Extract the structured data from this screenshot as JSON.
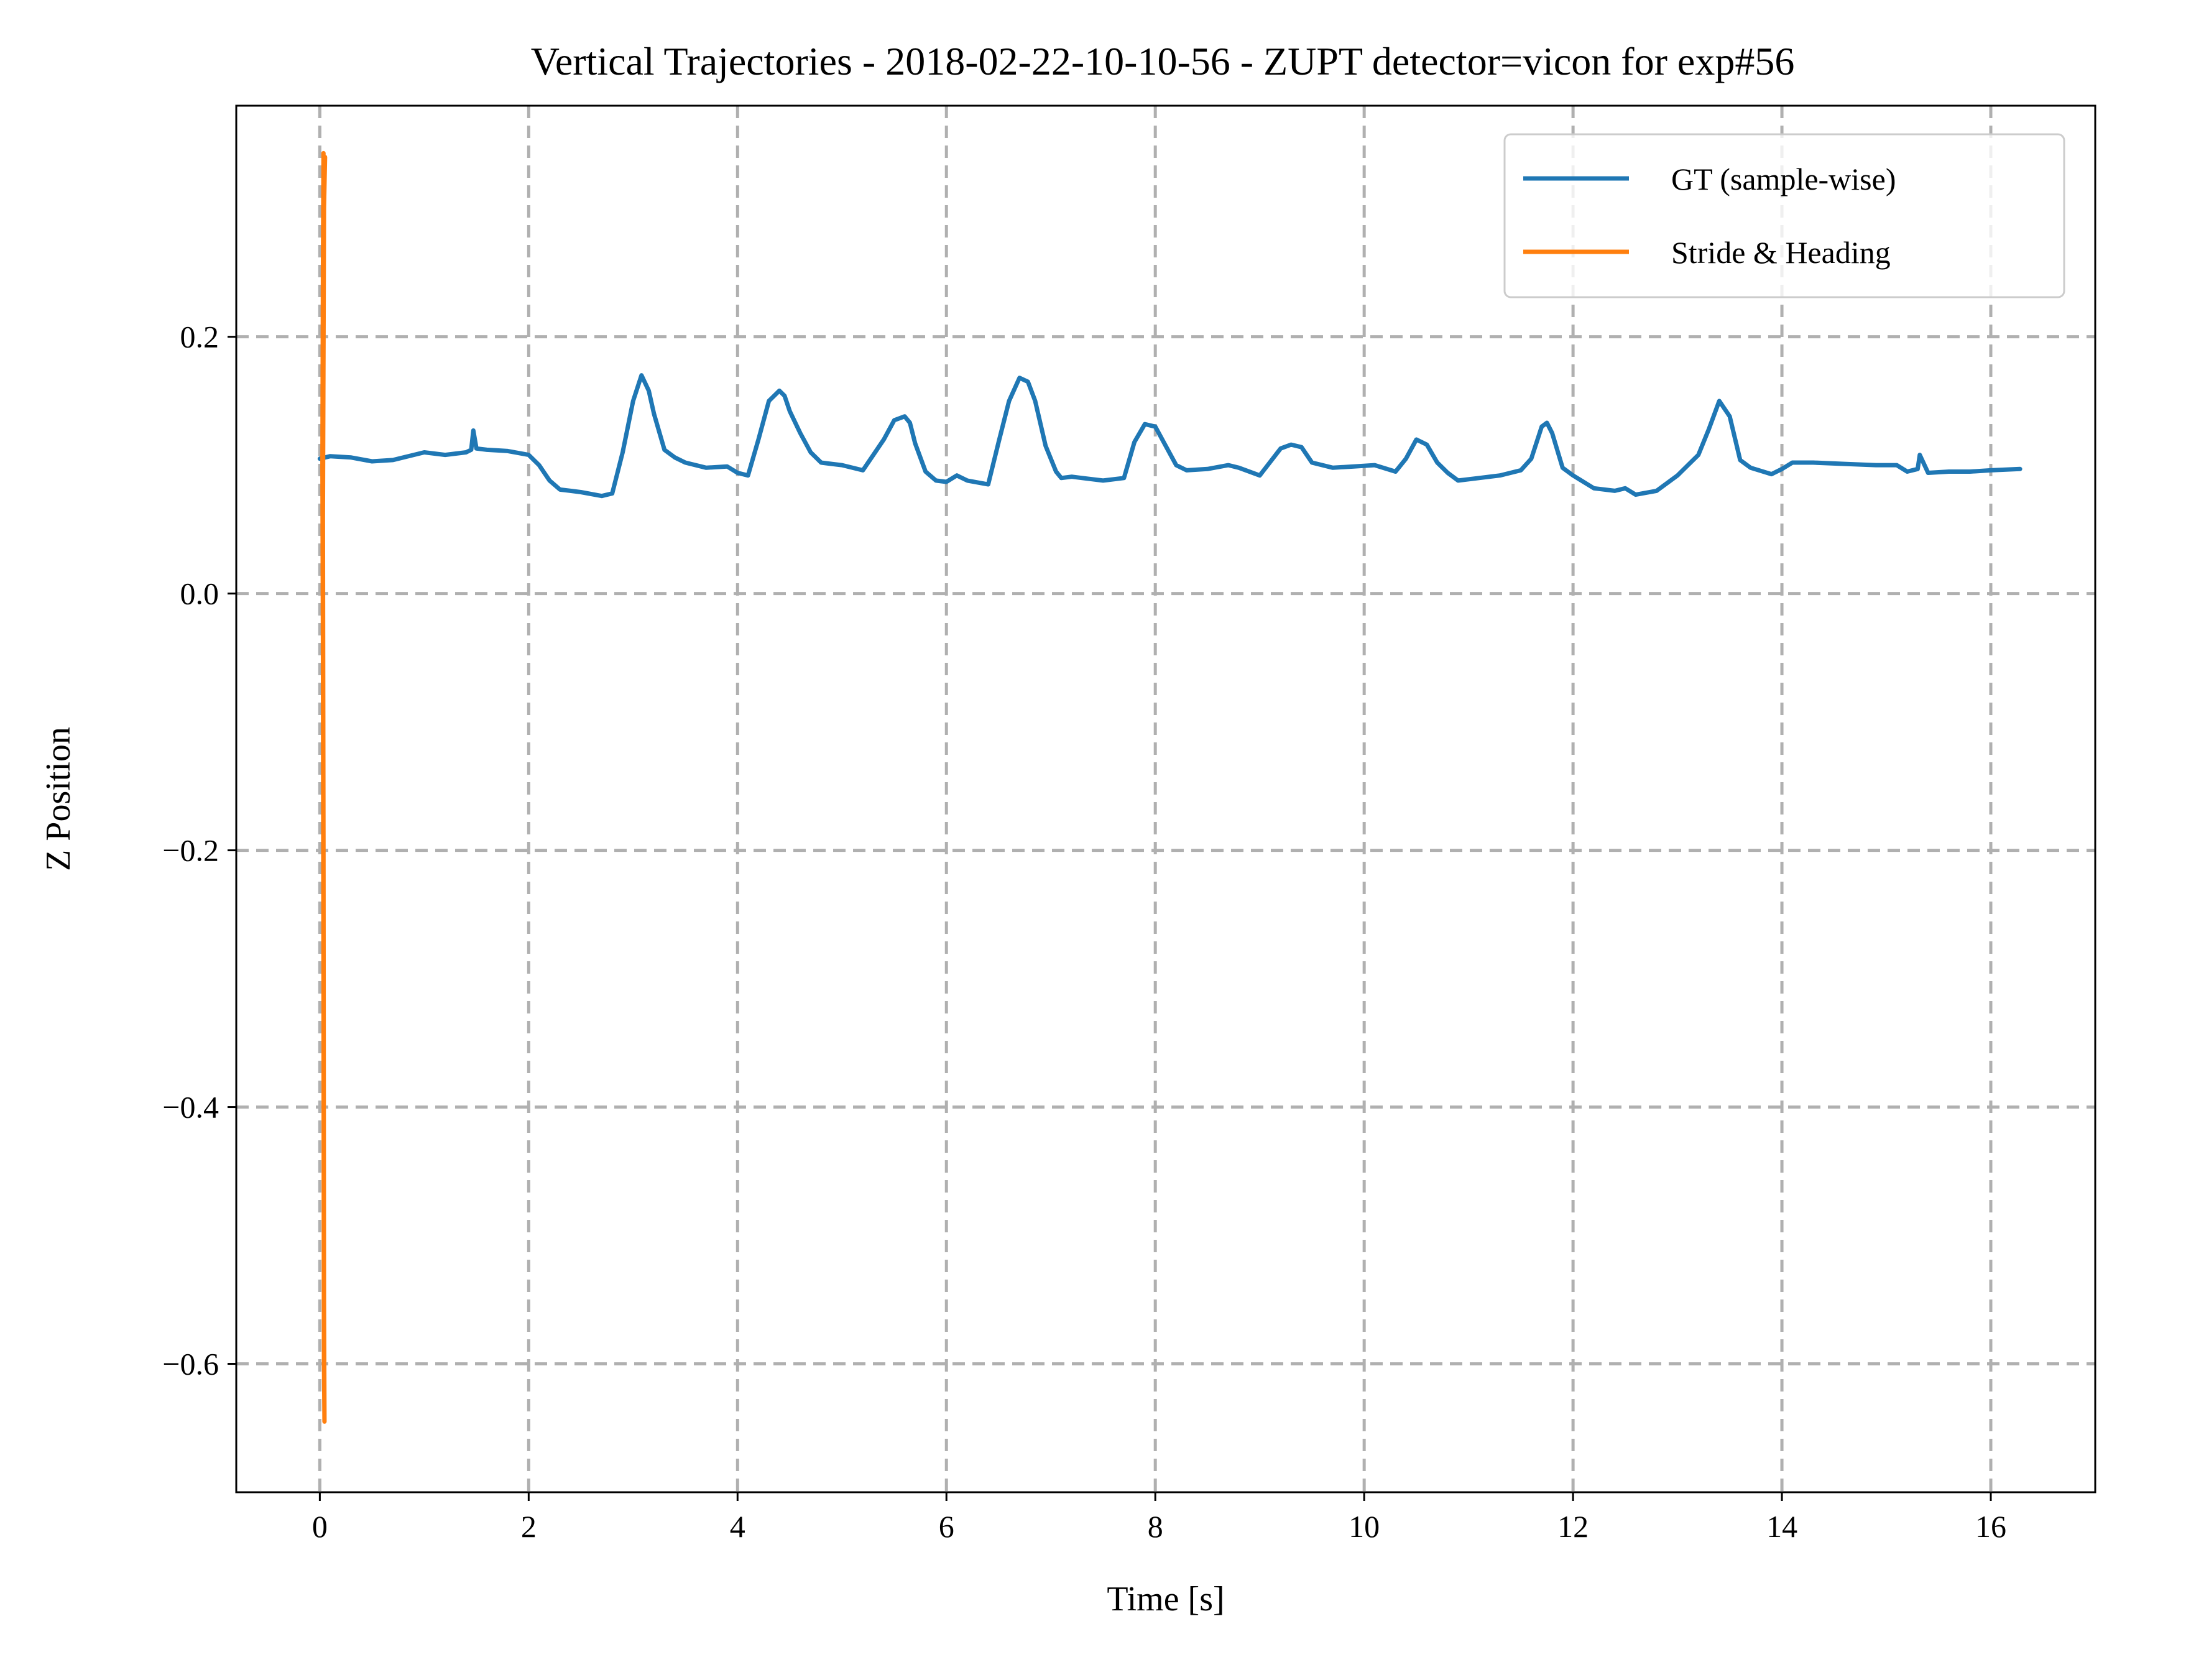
{
  "chart_data": {
    "type": "line",
    "title": "Vertical Trajectories - 2018-02-22-10-10-56 - ZUPT detector=vicon for exp#56",
    "xlabel": "Time [s]",
    "ylabel": "Z Position",
    "xlim": [
      -0.8,
      17.0
    ],
    "ylim": [
      -0.7,
      0.38
    ],
    "xticks": [
      0,
      2,
      4,
      6,
      8,
      10,
      12,
      14,
      16
    ],
    "xtick_labels": [
      "0",
      "2",
      "4",
      "6",
      "8",
      "10",
      "12",
      "14",
      "16"
    ],
    "yticks": [
      -0.6,
      -0.4,
      -0.2,
      0.0,
      0.2
    ],
    "ytick_labels": [
      "−0.6",
      "−0.4",
      "−0.2",
      "0.0",
      "0.2"
    ],
    "grid": true,
    "grid_style": "dashed",
    "legend_position": "top-right",
    "series": [
      {
        "name": "GT (sample-wise)",
        "color": "#1f77b4",
        "x": [
          0.0,
          0.1,
          0.3,
          0.5,
          0.7,
          0.9,
          1.0,
          1.2,
          1.4,
          1.45,
          1.47,
          1.5,
          1.6,
          1.8,
          2.0,
          2.1,
          2.2,
          2.3,
          2.4,
          2.5,
          2.7,
          2.8,
          2.9,
          3.0,
          3.08,
          3.15,
          3.2,
          3.3,
          3.4,
          3.5,
          3.7,
          3.9,
          4.0,
          4.1,
          4.2,
          4.3,
          4.4,
          4.45,
          4.5,
          4.6,
          4.7,
          4.8,
          4.9,
          5.0,
          5.2,
          5.4,
          5.5,
          5.6,
          5.65,
          5.7,
          5.8,
          5.9,
          6.0,
          6.1,
          6.2,
          6.4,
          6.5,
          6.6,
          6.7,
          6.78,
          6.85,
          6.95,
          7.05,
          7.1,
          7.2,
          7.3,
          7.5,
          7.7,
          7.8,
          7.9,
          8.0,
          8.1,
          8.2,
          8.3,
          8.5,
          8.7,
          8.8,
          9.0,
          9.2,
          9.3,
          9.4,
          9.5,
          9.7,
          9.9,
          10.1,
          10.3,
          10.4,
          10.5,
          10.6,
          10.7,
          10.8,
          10.9,
          11.1,
          11.3,
          11.5,
          11.6,
          11.7,
          11.75,
          11.8,
          11.9,
          12.0,
          12.2,
          12.4,
          12.5,
          12.6,
          12.8,
          13.0,
          13.1,
          13.2,
          13.3,
          13.4,
          13.5,
          13.6,
          13.7,
          13.9,
          14.0,
          14.1,
          14.3,
          14.6,
          14.9,
          15.1,
          15.2,
          15.3,
          15.32,
          15.4,
          15.6,
          15.8,
          16.0,
          16.28
        ],
        "y": [
          0.105,
          0.107,
          0.106,
          0.103,
          0.104,
          0.108,
          0.11,
          0.108,
          0.11,
          0.112,
          0.127,
          0.113,
          0.112,
          0.111,
          0.108,
          0.1,
          0.088,
          0.081,
          0.08,
          0.079,
          0.076,
          0.078,
          0.11,
          0.15,
          0.17,
          0.158,
          0.14,
          0.112,
          0.106,
          0.102,
          0.098,
          0.099,
          0.094,
          0.092,
          0.12,
          0.15,
          0.158,
          0.154,
          0.142,
          0.125,
          0.11,
          0.102,
          0.101,
          0.1,
          0.096,
          0.12,
          0.135,
          0.138,
          0.133,
          0.117,
          0.095,
          0.088,
          0.087,
          0.092,
          0.088,
          0.085,
          0.118,
          0.15,
          0.168,
          0.165,
          0.15,
          0.115,
          0.095,
          0.09,
          0.091,
          0.09,
          0.088,
          0.09,
          0.118,
          0.132,
          0.13,
          0.115,
          0.1,
          0.096,
          0.097,
          0.1,
          0.098,
          0.092,
          0.113,
          0.116,
          0.114,
          0.102,
          0.098,
          0.099,
          0.1,
          0.095,
          0.105,
          0.12,
          0.116,
          0.102,
          0.094,
          0.088,
          0.09,
          0.092,
          0.096,
          0.105,
          0.13,
          0.133,
          0.125,
          0.098,
          0.092,
          0.082,
          0.08,
          0.082,
          0.077,
          0.08,
          0.092,
          0.1,
          0.108,
          0.128,
          0.15,
          0.138,
          0.104,
          0.098,
          0.093,
          0.097,
          0.102,
          0.102,
          0.101,
          0.1,
          0.1,
          0.095,
          0.097,
          0.108,
          0.094,
          0.095,
          0.095,
          0.096,
          0.097
        ]
      },
      {
        "name": "Stride & Heading",
        "color": "#ff7f0e",
        "x": [
          0.03,
          0.035,
          0.03,
          0.025,
          0.03,
          0.035,
          0.04,
          0.045,
          0.04,
          0.035,
          0.03,
          0.04,
          0.05
        ],
        "y": [
          0.06,
          0.343,
          0.25,
          0.1,
          -0.04,
          -0.3,
          -0.6,
          -0.645,
          -0.55,
          -0.2,
          0.06,
          0.3,
          0.34
        ]
      }
    ]
  }
}
